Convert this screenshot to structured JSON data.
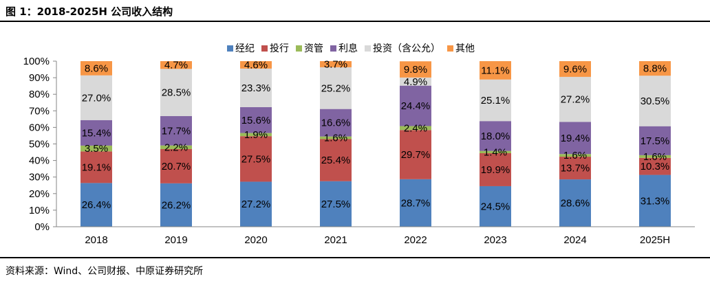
{
  "header": {
    "title": "图 1：2018-2025H 公司收入结构"
  },
  "footer": {
    "source": "资料来源：Wind、公司财报、中原证券研究所"
  },
  "chart_data": {
    "type": "bar",
    "stacked": true,
    "categories": [
      "2018",
      "2019",
      "2020",
      "2021",
      "2022",
      "2023",
      "2024",
      "2025H"
    ],
    "yticks": [
      "0%",
      "10%",
      "20%",
      "30%",
      "40%",
      "50%",
      "60%",
      "70%",
      "80%",
      "90%",
      "100%"
    ],
    "ylim": [
      0,
      100
    ],
    "legend_position": "top",
    "grid": false,
    "series": [
      {
        "name": "经纪",
        "color": "#4F81BD",
        "values": [
          26.4,
          26.2,
          27.2,
          27.5,
          28.7,
          24.5,
          28.6,
          31.3
        ],
        "labels": [
          "26.4%",
          "26.2%",
          "27.2%",
          "27.5%",
          "28.7%",
          "24.5%",
          "28.6%",
          "31.3%"
        ]
      },
      {
        "name": "投行",
        "color": "#C0504D",
        "values": [
          19.1,
          20.7,
          27.5,
          25.4,
          29.7,
          19.9,
          13.7,
          10.3
        ],
        "labels": [
          "19.1%",
          "20.7%",
          "27.5%",
          "25.4%",
          "29.7%",
          "19.9%",
          "13.7%",
          "10.3%"
        ]
      },
      {
        "name": "资管",
        "color": "#9BBB59",
        "values": [
          3.5,
          2.2,
          1.9,
          1.6,
          2.4,
          1.4,
          1.6,
          1.6
        ],
        "labels": [
          "3.5%",
          "2.2%",
          "1.9%",
          "1.6%",
          "2.4%",
          "1.4%",
          "1.6%",
          "1.6%"
        ]
      },
      {
        "name": "利息",
        "color": "#8064A2",
        "values": [
          15.4,
          17.7,
          15.6,
          16.6,
          24.4,
          18.0,
          19.4,
          17.5
        ],
        "labels": [
          "15.4%",
          "17.7%",
          "15.6%",
          "16.6%",
          "24.4%",
          "18.0%",
          "19.4%",
          "17.5%"
        ]
      },
      {
        "name": "投资（含公允）",
        "color": "#D9D9D9",
        "values": [
          27.0,
          28.5,
          23.3,
          25.2,
          4.9,
          25.1,
          27.2,
          30.5
        ],
        "labels": [
          "27.0%",
          "28.5%",
          "23.3%",
          "25.2%",
          "4.9%",
          "25.1%",
          "27.2%",
          "30.5%"
        ]
      },
      {
        "name": "其他",
        "color": "#F79646",
        "values": [
          8.6,
          4.7,
          4.6,
          3.7,
          9.8,
          11.1,
          9.6,
          8.8
        ],
        "labels": [
          "8.6%",
          "4.7%",
          "4.6%",
          "3.7%",
          "9.8%",
          "11.1%",
          "9.6%",
          "8.8%"
        ]
      }
    ]
  }
}
